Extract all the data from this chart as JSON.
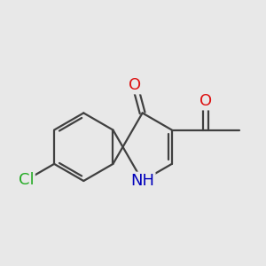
{
  "background_color": "#e8e8e8",
  "bond_color": "#404040",
  "bond_width": 1.6,
  "dbo": 0.07,
  "atom_colors": {
    "O": "#dd1111",
    "N": "#0000bb",
    "Cl": "#22aa22",
    "C": "#404040"
  },
  "font_size": 13,
  "font_size_h": 11
}
